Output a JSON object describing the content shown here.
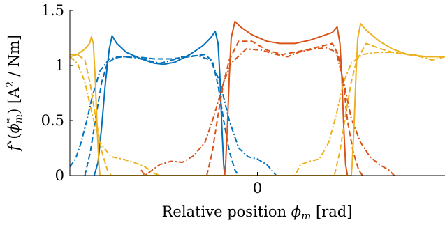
{
  "chart_data": {
    "type": "line",
    "xlabel": "Relative position ϕm [rad]",
    "ylabel": "f⋆(ϕ*m) [A² / Nm]",
    "x_range": [
      -1.0,
      1.0
    ],
    "ylim": [
      0,
      1.5
    ],
    "x_ticks": [
      {
        "value": 0.0,
        "label": "0"
      }
    ],
    "y_ticks": [
      {
        "value": 0,
        "label": "0"
      },
      {
        "value": 0.5,
        "label": "0.5"
      },
      {
        "value": 1.0,
        "label": "1"
      },
      {
        "value": 1.5,
        "label": "1.5"
      }
    ],
    "grid": false,
    "legend": "none",
    "series": [
      {
        "color": "#0072BD",
        "dash": "solid",
        "points": [
          [
            -0.87,
            0.0
          ],
          [
            -0.85,
            0.12
          ],
          [
            -0.83,
            0.45
          ],
          [
            -0.81,
            0.85
          ],
          [
            -0.79,
            1.15
          ],
          [
            -0.775,
            1.27
          ],
          [
            -0.75,
            1.2
          ],
          [
            -0.7,
            1.12
          ],
          [
            -0.62,
            1.06
          ],
          [
            -0.55,
            1.02
          ],
          [
            -0.5,
            1.01
          ],
          [
            -0.44,
            1.03
          ],
          [
            -0.36,
            1.1
          ],
          [
            -0.29,
            1.18
          ],
          [
            -0.25,
            1.25
          ],
          [
            -0.225,
            1.31
          ],
          [
            -0.21,
            1.2
          ],
          [
            -0.2,
            0.9
          ],
          [
            -0.19,
            0.45
          ],
          [
            -0.18,
            0.1
          ],
          [
            -0.175,
            0.0
          ]
        ]
      },
      {
        "color": "#0072BD",
        "dash": "dashed",
        "points": [
          [
            -0.92,
            0.0
          ],
          [
            -0.89,
            0.22
          ],
          [
            -0.86,
            0.55
          ],
          [
            -0.83,
            0.85
          ],
          [
            -0.8,
            1.02
          ],
          [
            -0.75,
            1.08
          ],
          [
            -0.65,
            1.08
          ],
          [
            -0.55,
            1.06
          ],
          [
            -0.46,
            1.06
          ],
          [
            -0.36,
            1.08
          ],
          [
            -0.28,
            1.1
          ],
          [
            -0.24,
            1.04
          ],
          [
            -0.21,
            0.82
          ],
          [
            -0.18,
            0.5
          ],
          [
            -0.15,
            0.22
          ],
          [
            -0.12,
            0.05
          ],
          [
            -0.1,
            0.0
          ]
        ]
      },
      {
        "color": "#0072BD",
        "dash": "dashdot",
        "points": [
          [
            -1.0,
            0.08
          ],
          [
            -0.97,
            0.15
          ],
          [
            -0.94,
            0.3
          ],
          [
            -0.91,
            0.5
          ],
          [
            -0.88,
            0.72
          ],
          [
            -0.84,
            0.95
          ],
          [
            -0.79,
            1.06
          ],
          [
            -0.72,
            1.08
          ],
          [
            -0.64,
            1.07
          ],
          [
            -0.57,
            1.04
          ],
          [
            -0.52,
            1.02
          ],
          [
            -0.47,
            1.04
          ],
          [
            -0.4,
            1.08
          ],
          [
            -0.32,
            1.09
          ],
          [
            -0.25,
            1.05
          ],
          [
            -0.2,
            0.85
          ],
          [
            -0.15,
            0.5
          ],
          [
            -0.1,
            0.25
          ],
          [
            -0.05,
            0.17
          ],
          [
            0.0,
            0.15
          ],
          [
            0.05,
            0.1
          ],
          [
            0.1,
            0.0
          ]
        ]
      },
      {
        "color": "#D95319",
        "dash": "solid",
        "points": [
          [
            -0.175,
            0.0
          ],
          [
            -0.17,
            0.1
          ],
          [
            -0.16,
            0.45
          ],
          [
            -0.15,
            0.9
          ],
          [
            -0.14,
            1.25
          ],
          [
            -0.12,
            1.4
          ],
          [
            -0.09,
            1.35
          ],
          [
            -0.03,
            1.28
          ],
          [
            0.05,
            1.22
          ],
          [
            0.12,
            1.2
          ],
          [
            0.2,
            1.2
          ],
          [
            0.28,
            1.23
          ],
          [
            0.35,
            1.27
          ],
          [
            0.4,
            1.3
          ],
          [
            0.425,
            1.35
          ],
          [
            0.44,
            1.2
          ],
          [
            0.45,
            0.9
          ],
          [
            0.46,
            0.45
          ],
          [
            0.47,
            0.1
          ],
          [
            0.48,
            0.0
          ]
        ]
      },
      {
        "color": "#D95319",
        "dash": "dashed",
        "points": [
          [
            -0.27,
            0.0
          ],
          [
            -0.24,
            0.22
          ],
          [
            -0.21,
            0.55
          ],
          [
            -0.18,
            0.85
          ],
          [
            -0.15,
            1.05
          ],
          [
            -0.1,
            1.22
          ],
          [
            -0.03,
            1.22
          ],
          [
            0.05,
            1.14
          ],
          [
            0.13,
            1.1
          ],
          [
            0.2,
            1.12
          ],
          [
            0.28,
            1.15
          ],
          [
            0.35,
            1.18
          ],
          [
            0.4,
            1.2
          ],
          [
            0.43,
            1.1
          ],
          [
            0.46,
            0.82
          ],
          [
            0.48,
            0.5
          ],
          [
            0.51,
            0.22
          ],
          [
            0.54,
            0.05
          ],
          [
            0.56,
            0.0
          ]
        ]
      },
      {
        "color": "#D95319",
        "dash": "dashdot",
        "points": [
          [
            -0.62,
            0.05
          ],
          [
            -0.6,
            0.0
          ],
          [
            -0.56,
            0.05
          ],
          [
            -0.52,
            0.1
          ],
          [
            -0.46,
            0.13
          ],
          [
            -0.4,
            0.12
          ],
          [
            -0.34,
            0.18
          ],
          [
            -0.28,
            0.3
          ],
          [
            -0.23,
            0.55
          ],
          [
            -0.18,
            0.85
          ],
          [
            -0.14,
            1.02
          ],
          [
            -0.06,
            1.15
          ],
          [
            0.02,
            1.14
          ],
          [
            0.1,
            1.1
          ],
          [
            0.16,
            1.08
          ],
          [
            0.22,
            1.12
          ],
          [
            0.3,
            1.15
          ],
          [
            0.37,
            1.16
          ],
          [
            0.42,
            1.12
          ],
          [
            0.46,
            0.85
          ],
          [
            0.5,
            0.52
          ],
          [
            0.55,
            0.3
          ],
          [
            0.6,
            0.17
          ],
          [
            0.65,
            0.1
          ],
          [
            0.7,
            0.05
          ],
          [
            0.73,
            0.0
          ]
        ]
      },
      {
        "color": "#EDB120",
        "dash": "solid",
        "points": [
          [
            -1.0,
            1.08
          ],
          [
            -0.96,
            1.1
          ],
          [
            -0.92,
            1.15
          ],
          [
            -0.895,
            1.2
          ],
          [
            -0.885,
            1.26
          ],
          [
            -0.875,
            1.2
          ],
          [
            -0.865,
            0.9
          ],
          [
            -0.855,
            0.45
          ],
          [
            -0.845,
            0.1
          ],
          [
            -0.84,
            0.0
          ],
          [
            0.5,
            0.0
          ],
          [
            0.505,
            0.1
          ],
          [
            0.515,
            0.45
          ],
          [
            0.525,
            0.9
          ],
          [
            0.535,
            1.25
          ],
          [
            0.55,
            1.38
          ],
          [
            0.58,
            1.32
          ],
          [
            0.65,
            1.22
          ],
          [
            0.72,
            1.15
          ],
          [
            0.8,
            1.1
          ],
          [
            0.9,
            1.08
          ],
          [
            1.0,
            1.08
          ]
        ]
      },
      {
        "color": "#EDB120",
        "dash": "dashed",
        "points": [
          [
            -1.0,
            1.1
          ],
          [
            -0.96,
            1.1
          ],
          [
            -0.92,
            1.05
          ],
          [
            -0.89,
            0.82
          ],
          [
            -0.86,
            0.5
          ],
          [
            -0.83,
            0.22
          ],
          [
            -0.8,
            0.05
          ],
          [
            -0.78,
            0.0
          ],
          [
            0.41,
            0.0
          ],
          [
            0.44,
            0.22
          ],
          [
            0.47,
            0.55
          ],
          [
            0.5,
            0.85
          ],
          [
            0.53,
            1.05
          ],
          [
            0.58,
            1.2
          ],
          [
            0.66,
            1.15
          ],
          [
            0.74,
            1.11
          ],
          [
            0.82,
            1.1
          ],
          [
            0.9,
            1.08
          ],
          [
            1.0,
            1.08
          ]
        ]
      },
      {
        "color": "#EDB120",
        "dash": "dashdot",
        "points": [
          [
            -1.0,
            1.08
          ],
          [
            -0.96,
            1.02
          ],
          [
            -0.92,
            0.85
          ],
          [
            -0.88,
            0.55
          ],
          [
            -0.84,
            0.3
          ],
          [
            -0.78,
            0.17
          ],
          [
            -0.72,
            0.15
          ],
          [
            -0.66,
            0.12
          ],
          [
            -0.6,
            0.08
          ],
          [
            -0.55,
            0.02
          ],
          [
            -0.52,
            0.0
          ],
          [
            0.2,
            0.0
          ],
          [
            0.23,
            0.1
          ],
          [
            0.28,
            0.13
          ],
          [
            0.33,
            0.15
          ],
          [
            0.38,
            0.3
          ],
          [
            0.42,
            0.55
          ],
          [
            0.46,
            0.85
          ],
          [
            0.5,
            1.02
          ],
          [
            0.56,
            1.1
          ],
          [
            0.64,
            1.12
          ],
          [
            0.72,
            1.12
          ],
          [
            0.8,
            1.1
          ],
          [
            0.87,
            1.08
          ],
          [
            0.93,
            1.05
          ],
          [
            1.0,
            1.08
          ]
        ]
      }
    ]
  }
}
